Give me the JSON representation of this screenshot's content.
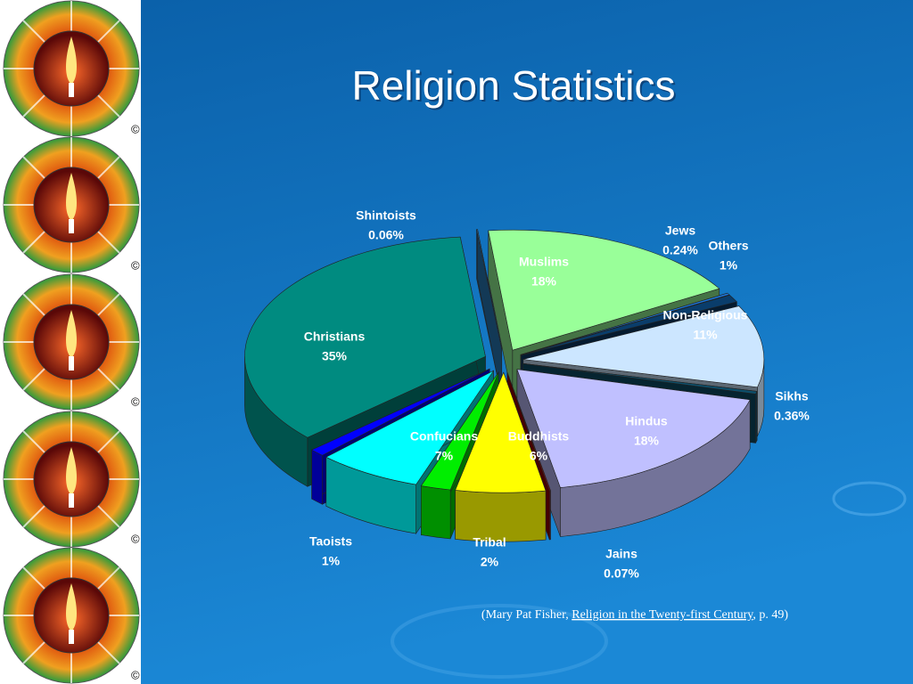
{
  "title": "Religion Statistics",
  "icon_mark": "©",
  "source": {
    "prefix": "(Mary Pat Fisher, ",
    "book": "Religion in the Twenty-first Century",
    "suffix": ", p. 49)"
  },
  "chart_data": {
    "type": "pie",
    "categories": [
      "Shintoists",
      "Muslims",
      "Jews",
      "Others",
      "Non-Religious",
      "Sikhs",
      "Hindus",
      "Jains",
      "Buddhists",
      "Tribal",
      "Confucians",
      "Taoists",
      "Christians"
    ],
    "values": [
      0.06,
      18,
      0.24,
      1,
      11,
      0.36,
      18,
      0.07,
      6,
      2,
      7,
      1,
      35
    ],
    "value_labels": [
      "0.06%",
      "18%",
      "0.24%",
      "1%",
      "11%",
      "0.36%",
      "18%",
      "0.07%",
      "6%",
      "2%",
      "7%",
      "1%",
      "35%"
    ],
    "colors": [
      "#2a7fc0",
      "#99ff99",
      "#1a78e0",
      "#0a3d6b",
      "#cce6ff",
      "#0d4f6b",
      "#c0c0ff",
      "#990000",
      "#ffff00",
      "#00ee00",
      "#00ffff",
      "#0000ff",
      "#008b80"
    ]
  }
}
